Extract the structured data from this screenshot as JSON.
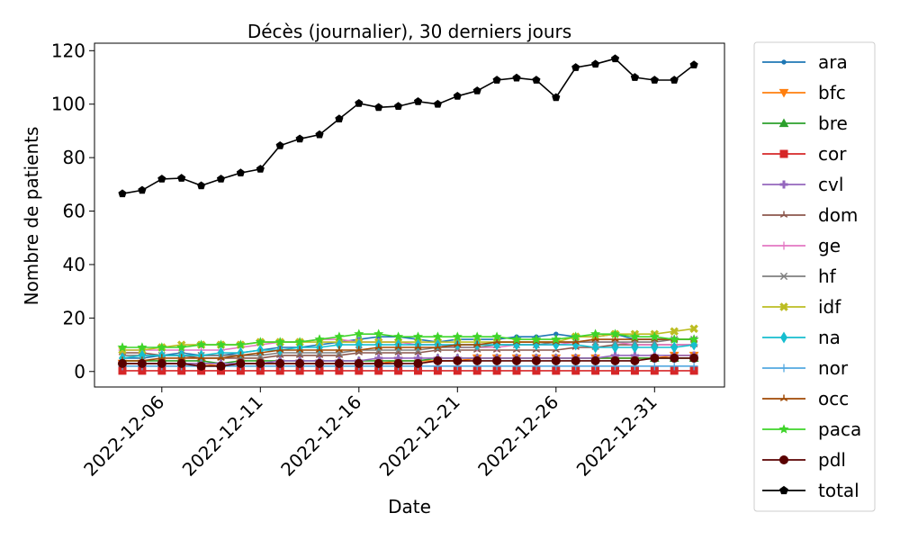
{
  "chart_data": {
    "type": "line",
    "title": "Décès (journalier), 30 derniers jours",
    "xlabel": "Date",
    "ylabel": "Nombre de patients",
    "x": [
      "2022-12-04",
      "2022-12-05",
      "2022-12-06",
      "2022-12-07",
      "2022-12-08",
      "2022-12-09",
      "2022-12-10",
      "2022-12-11",
      "2022-12-12",
      "2022-12-13",
      "2022-12-14",
      "2022-12-15",
      "2022-12-16",
      "2022-12-17",
      "2022-12-18",
      "2022-12-19",
      "2022-12-20",
      "2022-12-21",
      "2022-12-22",
      "2022-12-23",
      "2022-12-24",
      "2022-12-25",
      "2022-12-26",
      "2022-12-27",
      "2022-12-28",
      "2022-12-29",
      "2022-12-30",
      "2022-12-31",
      "2023-01-01",
      "2023-01-02"
    ],
    "xticks": [
      "2022-12-06",
      "2022-12-11",
      "2022-12-16",
      "2022-12-21",
      "2022-12-26",
      "2022-12-31"
    ],
    "ylim": [
      -5.8,
      122.8
    ],
    "yticks": [
      0,
      20,
      40,
      60,
      80,
      100,
      120
    ],
    "grid": false,
    "legend_position": "outside-right",
    "series": [
      {
        "name": "ara",
        "color": "#1f77b4",
        "marker": "point",
        "values": [
          5,
          5,
          6,
          7,
          6,
          6,
          7,
          8,
          9,
          9,
          10,
          11,
          12,
          13,
          13,
          12,
          11,
          12,
          12,
          12,
          13,
          13,
          14,
          13,
          13,
          14,
          12,
          12,
          12,
          12
        ]
      },
      {
        "name": "bfc",
        "color": "#ff7f0e",
        "marker": "triangle-down",
        "values": [
          3,
          3,
          3,
          3,
          3,
          2,
          3,
          3,
          3,
          3,
          3,
          3,
          3,
          3,
          4,
          4,
          4,
          4,
          5,
          5,
          5,
          5,
          5,
          5,
          5,
          5,
          5,
          5,
          6,
          6
        ]
      },
      {
        "name": "bre",
        "color": "#2ca02c",
        "marker": "triangle-up",
        "values": [
          4,
          4,
          4,
          4,
          4,
          3,
          4,
          4,
          4,
          4,
          4,
          4,
          4,
          4,
          4,
          4,
          5,
          5,
          5,
          5,
          5,
          5,
          5,
          5,
          5,
          5,
          5,
          5,
          5,
          5
        ]
      },
      {
        "name": "cor",
        "color": "#d62728",
        "marker": "square",
        "values": [
          0.3,
          0.3,
          0.3,
          0.3,
          0.3,
          0.3,
          0.3,
          0.3,
          0.3,
          0.3,
          0.3,
          0.3,
          0.3,
          0.3,
          0.3,
          0.3,
          0.3,
          0.3,
          0.3,
          0.3,
          0.3,
          0.3,
          0.3,
          0.3,
          0.3,
          0.3,
          0.3,
          0.3,
          0.3,
          0.3
        ]
      },
      {
        "name": "cvl",
        "color": "#9467bd",
        "marker": "plus-filled",
        "values": [
          3,
          3,
          3,
          3,
          3,
          3,
          3,
          3,
          4,
          4,
          4,
          4,
          4,
          5,
          5,
          5,
          5,
          5,
          5,
          5,
          5,
          5,
          5,
          5,
          5,
          6,
          6,
          6,
          6,
          6
        ]
      },
      {
        "name": "dom",
        "color": "#8c564b",
        "marker": "tri",
        "values": [
          7,
          7,
          6,
          6,
          5,
          5,
          5,
          5,
          6,
          6,
          6,
          6,
          7,
          7,
          7,
          7,
          8,
          8,
          8,
          8,
          8,
          8,
          8,
          9,
          9,
          10,
          10,
          10,
          10,
          10
        ]
      },
      {
        "name": "ge",
        "color": "#e377c2",
        "marker": "plus",
        "values": [
          8,
          8,
          8,
          8,
          8,
          8,
          9,
          10,
          11,
          11,
          12,
          12,
          11,
          11,
          11,
          10,
          10,
          9,
          9,
          9,
          10,
          10,
          10,
          11,
          11,
          11,
          10,
          10,
          10,
          10
        ]
      },
      {
        "name": "hf",
        "color": "#7f7f7f",
        "marker": "x",
        "values": [
          6,
          6,
          6,
          6,
          6,
          6,
          6,
          6,
          7,
          7,
          7,
          7,
          8,
          8,
          8,
          8,
          9,
          9,
          9,
          10,
          10,
          10,
          11,
          11,
          11,
          11,
          11,
          11,
          12,
          12
        ]
      },
      {
        "name": "idf",
        "color": "#bcbd22",
        "marker": "x-filled",
        "values": [
          8,
          8,
          9,
          10,
          10,
          10,
          10,
          11,
          11,
          11,
          11,
          11,
          11,
          11,
          11,
          11,
          11,
          11,
          11,
          11,
          11,
          11,
          11,
          13,
          13,
          14,
          14,
          14,
          15,
          16
        ]
      },
      {
        "name": "na",
        "color": "#17becf",
        "marker": "diamond",
        "values": [
          5,
          6,
          6,
          6,
          6,
          7,
          7,
          8,
          8,
          9,
          9,
          10,
          10,
          10,
          10,
          10,
          10,
          10,
          10,
          10,
          10,
          10,
          10,
          10,
          9,
          9,
          9,
          9,
          9,
          10
        ]
      },
      {
        "name": "nor",
        "color": "#52a8e0",
        "marker": "plus",
        "values": [
          2,
          2,
          2,
          2,
          2,
          2,
          2,
          2,
          2,
          2,
          2,
          2,
          2,
          2,
          2,
          2,
          2,
          2,
          2,
          2,
          2,
          2,
          2,
          2,
          2,
          2,
          2,
          2,
          2,
          2
        ]
      },
      {
        "name": "occ",
        "color": "#a04a04",
        "marker": "tri",
        "values": [
          4,
          4,
          5,
          5,
          5,
          5,
          6,
          7,
          8,
          8,
          8,
          8,
          8,
          9,
          9,
          9,
          9,
          10,
          10,
          11,
          11,
          11,
          11,
          11,
          12,
          12,
          12,
          12,
          12,
          12
        ]
      },
      {
        "name": "paca",
        "color": "#3fd42a",
        "marker": "star",
        "values": [
          9,
          9,
          9,
          9,
          10,
          10,
          10,
          11,
          11,
          11,
          12,
          13,
          14,
          14,
          13,
          13,
          13,
          13,
          13,
          13,
          12,
          12,
          12,
          13,
          14,
          14,
          13,
          13,
          12,
          12
        ]
      },
      {
        "name": "pdl",
        "color": "#5a0000",
        "marker": "circle",
        "values": [
          3,
          3,
          3,
          3,
          2,
          2,
          3,
          3,
          3,
          3,
          3,
          3,
          3,
          3,
          3,
          3,
          4,
          4,
          4,
          4,
          4,
          4,
          4,
          4,
          4,
          4,
          4,
          5,
          5,
          5
        ]
      },
      {
        "name": "total",
        "color": "#000000",
        "marker": "pentagon",
        "values": [
          66.5,
          67.8,
          72,
          72.3,
          69.5,
          72,
          74.3,
          75.7,
          84.5,
          87,
          88.6,
          94.5,
          100.3,
          98.8,
          99.2,
          101,
          100,
          103,
          105,
          109,
          109.8,
          109,
          102.5,
          113.7,
          115,
          117,
          110,
          109,
          109,
          114.7
        ]
      }
    ]
  }
}
